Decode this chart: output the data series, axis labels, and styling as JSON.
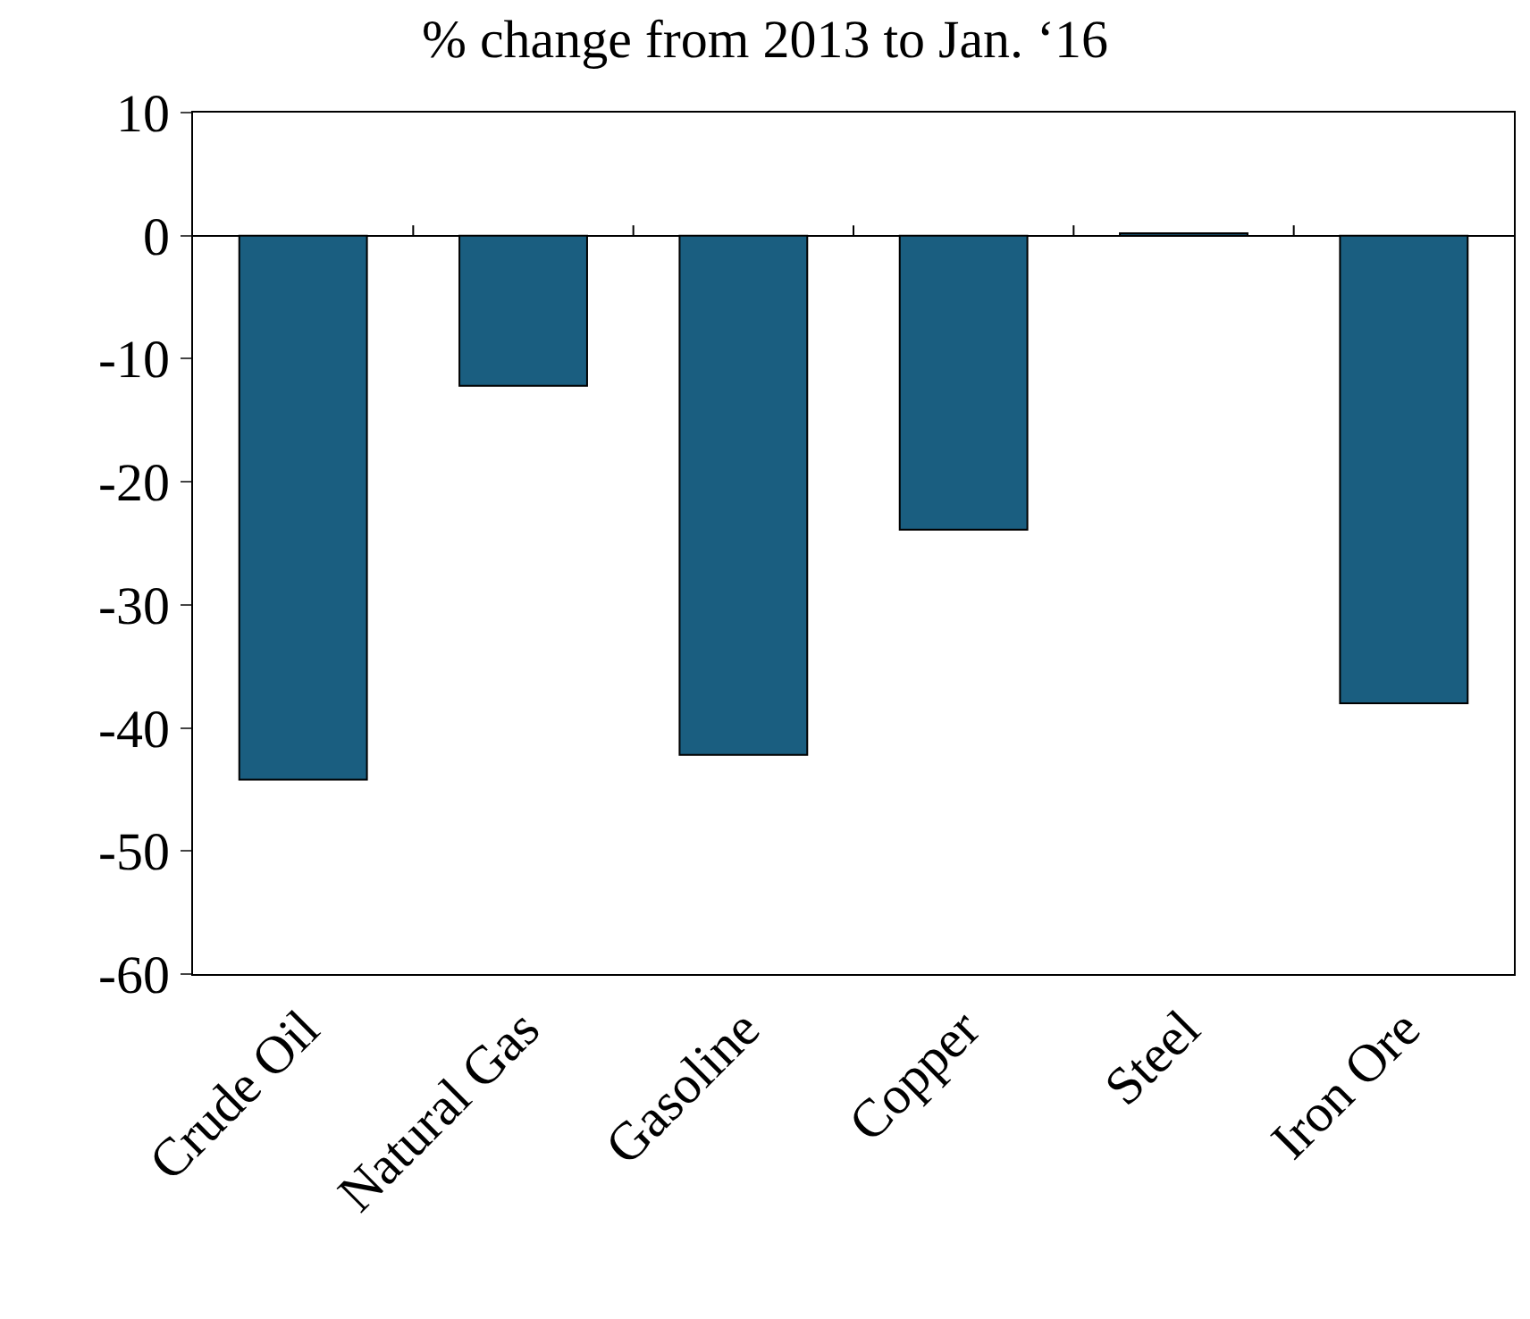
{
  "chart_data": {
    "type": "bar",
    "title": "% change from 2013 to Jan. ‘16",
    "categories": [
      "Crude Oil",
      "Natural Gas",
      "Gasoline",
      "Copper",
      "Steel",
      "Iron Ore"
    ],
    "values": [
      -44.2,
      -12.2,
      -42.2,
      -23.9,
      0.2,
      -38.0
    ],
    "color": "#1a5e80",
    "ylim": [
      -60,
      10
    ],
    "yticks": [
      -60,
      -50,
      -40,
      -30,
      -20,
      -10,
      0,
      10
    ],
    "legend": false
  }
}
